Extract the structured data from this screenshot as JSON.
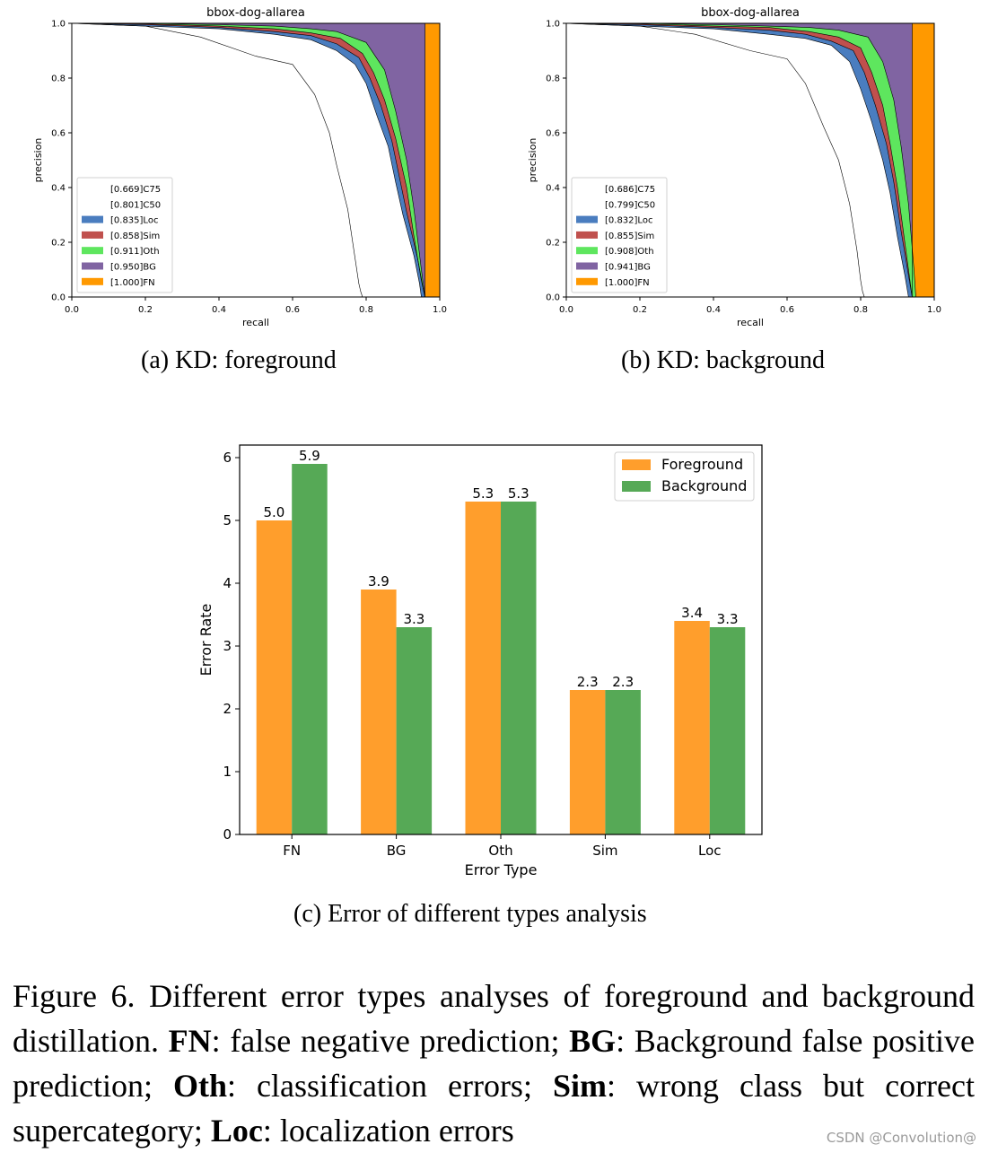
{
  "figure": {
    "caption_prefix": "Figure 6.",
    "caption_text": "Different error types analyses of foreground and background distillation.",
    "defs": [
      {
        "term": "FN",
        "text": ": false negative prediction;"
      },
      {
        "term": "BG",
        "text": ": Background false positive prediction;"
      },
      {
        "term": "Oth",
        "text": ": classification errors;"
      },
      {
        "term": "Sim",
        "text": ": wrong class but correct supercategory;"
      },
      {
        "term": "Loc",
        "text": ": localization errors"
      }
    ]
  },
  "subcaptions": {
    "a": "(a) KD: foreground",
    "b": "(b) KD: background",
    "c": "(c) Error of different types analysis"
  },
  "watermark": "CSDN @Convolution@",
  "colors": {
    "C75": "#ffffff",
    "C50": "#ffffff",
    "Loc": "#4a7dbf",
    "Sim": "#c0504d",
    "Oth": "#5ee65e",
    "BG": "#8064a2",
    "FN": "#ff9900",
    "fg_bar": "#ff9e2c",
    "bg_bar": "#56a956"
  },
  "chart_data": [
    {
      "type": "area",
      "title": "bbox-dog-allarea",
      "xlabel": "recall",
      "ylabel": "precision",
      "xlim": [
        0,
        1
      ],
      "ylim": [
        0,
        1
      ],
      "xticks": [
        "0.0",
        "0.2",
        "0.4",
        "0.6",
        "0.8",
        "1.0"
      ],
      "yticks": [
        "0.0",
        "0.2",
        "0.4",
        "0.6",
        "0.8",
        "1.0"
      ],
      "legend": [
        "[0.669]C75",
        "[0.801]C50",
        "[0.835]Loc",
        "[0.858]Sim",
        "[0.911]Oth",
        "[0.950]BG",
        "[1.000]FN"
      ],
      "series": [
        {
          "name": "C75",
          "recall": [
            0,
            0.2,
            0.35,
            0.5,
            0.6,
            0.66,
            0.7,
            0.72,
            0.75,
            0.77,
            0.78,
            0.785,
            0.79
          ],
          "precision": [
            1,
            0.99,
            0.95,
            0.88,
            0.85,
            0.74,
            0.6,
            0.48,
            0.32,
            0.14,
            0.05,
            0.02,
            0
          ]
        },
        {
          "name": "C50",
          "recall": [
            0,
            0.2,
            0.4,
            0.55,
            0.65,
            0.72,
            0.77,
            0.8,
            0.83,
            0.86,
            0.88,
            0.9,
            0.93,
            0.945,
            0.95
          ],
          "precision": [
            1,
            0.99,
            0.98,
            0.96,
            0.94,
            0.9,
            0.85,
            0.78,
            0.66,
            0.55,
            0.42,
            0.3,
            0.15,
            0.05,
            0
          ]
        },
        {
          "name": "Loc",
          "recall": [
            0,
            0.2,
            0.4,
            0.55,
            0.65,
            0.72,
            0.78,
            0.81,
            0.84,
            0.87,
            0.89,
            0.91,
            0.94,
            0.955,
            0.96
          ],
          "precision": [
            1,
            0.995,
            0.985,
            0.97,
            0.955,
            0.925,
            0.875,
            0.8,
            0.7,
            0.57,
            0.44,
            0.31,
            0.14,
            0.03,
            0
          ]
        },
        {
          "name": "Sim",
          "recall": [
            0,
            0.2,
            0.4,
            0.55,
            0.65,
            0.73,
            0.79,
            0.82,
            0.85,
            0.88,
            0.91,
            0.93,
            0.95,
            0.96
          ],
          "precision": [
            1,
            0.998,
            0.99,
            0.98,
            0.965,
            0.945,
            0.89,
            0.82,
            0.72,
            0.58,
            0.4,
            0.22,
            0.06,
            0
          ]
        },
        {
          "name": "Oth",
          "recall": [
            0,
            0.2,
            0.4,
            0.55,
            0.65,
            0.72,
            0.8,
            0.85,
            0.88,
            0.91,
            0.93,
            0.95,
            0.96
          ],
          "precision": [
            1,
            1,
            0.995,
            0.99,
            0.98,
            0.97,
            0.93,
            0.83,
            0.68,
            0.5,
            0.32,
            0.1,
            0
          ]
        },
        {
          "name": "BG",
          "recall": [
            0,
            0.96,
            0.96
          ],
          "precision": [
            1,
            1,
            0
          ]
        },
        {
          "name": "FN",
          "recall": [
            0,
            1,
            1
          ],
          "precision": [
            1,
            1,
            0
          ]
        }
      ]
    },
    {
      "type": "area",
      "title": "bbox-dog-allarea",
      "xlabel": "recall",
      "ylabel": "precision",
      "xlim": [
        0,
        1
      ],
      "ylim": [
        0,
        1
      ],
      "xticks": [
        "0.0",
        "0.2",
        "0.4",
        "0.6",
        "0.8",
        "1.0"
      ],
      "yticks": [
        "0.0",
        "0.2",
        "0.4",
        "0.6",
        "0.8",
        "1.0"
      ],
      "legend": [
        "[0.686]C75",
        "[0.799]C50",
        "[0.832]Loc",
        "[0.855]Sim",
        "[0.908]Oth",
        "[0.941]BG",
        "[1.000]FN"
      ],
      "series": [
        {
          "name": "C75",
          "recall": [
            0,
            0.2,
            0.35,
            0.5,
            0.6,
            0.65,
            0.7,
            0.74,
            0.77,
            0.79,
            0.8,
            0.805,
            0.81
          ],
          "precision": [
            1,
            0.99,
            0.96,
            0.9,
            0.87,
            0.78,
            0.62,
            0.5,
            0.34,
            0.17,
            0.06,
            0.02,
            0
          ]
        },
        {
          "name": "C50",
          "recall": [
            0,
            0.2,
            0.4,
            0.55,
            0.65,
            0.72,
            0.77,
            0.8,
            0.83,
            0.86,
            0.88,
            0.9,
            0.92,
            0.93
          ],
          "precision": [
            1,
            0.99,
            0.98,
            0.96,
            0.945,
            0.92,
            0.86,
            0.76,
            0.64,
            0.5,
            0.38,
            0.22,
            0.08,
            0
          ]
        },
        {
          "name": "Loc",
          "recall": [
            0,
            0.2,
            0.4,
            0.55,
            0.65,
            0.72,
            0.78,
            0.81,
            0.84,
            0.87,
            0.89,
            0.91,
            0.93,
            0.94
          ],
          "precision": [
            1,
            0.995,
            0.985,
            0.975,
            0.96,
            0.935,
            0.9,
            0.82,
            0.7,
            0.56,
            0.42,
            0.24,
            0.08,
            0
          ]
        },
        {
          "name": "Sim",
          "recall": [
            0,
            0.2,
            0.4,
            0.55,
            0.66,
            0.74,
            0.8,
            0.83,
            0.86,
            0.88,
            0.9,
            0.92,
            0.94
          ],
          "precision": [
            1,
            0.998,
            0.99,
            0.985,
            0.97,
            0.95,
            0.91,
            0.82,
            0.7,
            0.56,
            0.4,
            0.2,
            0
          ]
        },
        {
          "name": "Oth",
          "recall": [
            0,
            0.2,
            0.4,
            0.55,
            0.66,
            0.74,
            0.82,
            0.86,
            0.89,
            0.91,
            0.93,
            0.945,
            0.95
          ],
          "precision": [
            1,
            1,
            0.995,
            0.99,
            0.985,
            0.975,
            0.95,
            0.86,
            0.72,
            0.55,
            0.34,
            0.1,
            0
          ]
        },
        {
          "name": "BG",
          "recall": [
            0,
            0.94,
            0.94
          ],
          "precision": [
            1,
            1,
            0
          ]
        },
        {
          "name": "FN",
          "recall": [
            0,
            1,
            1
          ],
          "precision": [
            1,
            1,
            0
          ]
        }
      ]
    },
    {
      "type": "bar",
      "xlabel": "Error Type",
      "ylabel": "Error Rate",
      "ylim": [
        0,
        6.2
      ],
      "yticks": [
        "0",
        "1",
        "2",
        "3",
        "4",
        "5",
        "6"
      ],
      "categories": [
        "FN",
        "BG",
        "Oth",
        "Sim",
        "Loc"
      ],
      "legend_position": "top-right",
      "series": [
        {
          "name": "Foreground",
          "values": [
            5.0,
            3.9,
            5.3,
            2.3,
            3.4
          ],
          "labels": [
            "5.0",
            "3.9",
            "5.3",
            "2.3",
            "3.4"
          ]
        },
        {
          "name": "Background",
          "values": [
            5.9,
            3.3,
            5.3,
            2.3,
            3.3
          ],
          "labels": [
            "5.9",
            "3.3",
            "5.3",
            "2.3",
            "3.3"
          ]
        }
      ]
    }
  ]
}
